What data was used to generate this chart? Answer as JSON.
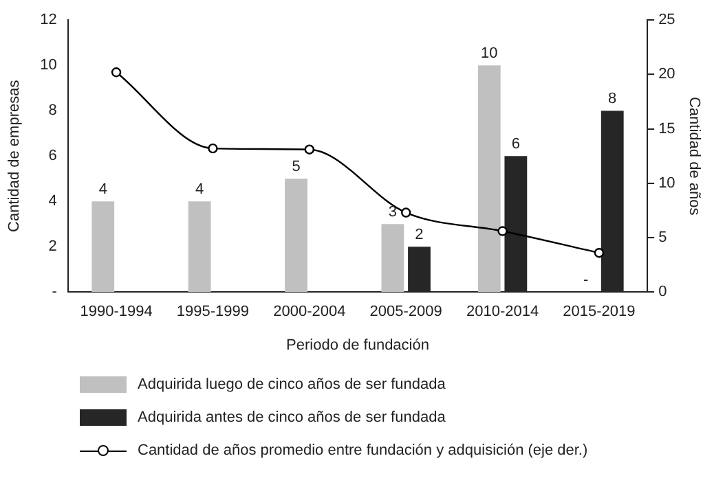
{
  "chart_data": {
    "type": "bar",
    "categories": [
      "1990-1994",
      "1995-1999",
      "2000-2004",
      "2005-2009",
      "2010-2014",
      "2015-2019"
    ],
    "xlabel": "Periodo de fundación",
    "ylabel": "Cantidad de empresas",
    "y2label": "Cantidad de años",
    "ylim": [
      0,
      12
    ],
    "yticks": [
      {
        "value": 0,
        "label": "-"
      },
      2,
      4,
      6,
      8,
      10,
      12
    ],
    "y2lim": [
      0,
      25
    ],
    "y2ticks": [
      0,
      5,
      10,
      15,
      20,
      25
    ],
    "grid": false,
    "legend": "bottom",
    "series": [
      {
        "name": "Adquirida luego de cinco años de ser fundada",
        "color": "#c0c0c0",
        "values": [
          4,
          4,
          5,
          3,
          10,
          0
        ],
        "value_labels": [
          "4",
          "4",
          "5",
          "3",
          "10",
          "-"
        ]
      },
      {
        "name": "Adquirida antes de cinco años de ser fundada",
        "color": "#262626",
        "values": [
          null,
          null,
          null,
          2,
          6,
          8
        ],
        "value_labels": [
          null,
          null,
          null,
          "2",
          "6",
          "8"
        ]
      },
      {
        "name": "Cantidad de años promedio entre fundación y adquisición (eje der.)",
        "type": "line",
        "axis": "y2",
        "color": "#000000",
        "marker": "circle",
        "values": [
          20.2,
          13.2,
          13.1,
          7.3,
          5.6,
          3.6
        ]
      }
    ]
  }
}
